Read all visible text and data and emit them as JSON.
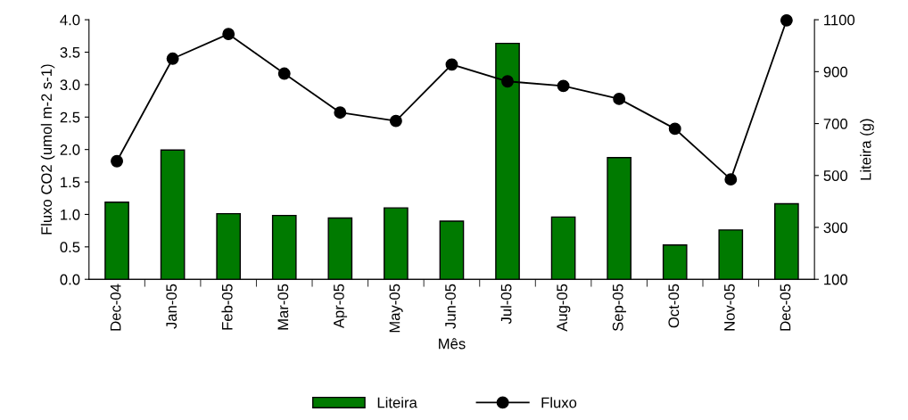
{
  "chart_data": {
    "type": "bar",
    "xlabel": "Mês",
    "ylabel": "Fluxo CO2 (umol m-2 s-1)",
    "y2label": "Liteira (g)",
    "categories": [
      "Dec-04",
      "Jan-05",
      "Feb-05",
      "Mar-05",
      "Apr-05",
      "May-05",
      "Jun-05",
      "Jul-05",
      "Aug-05",
      "Sep-05",
      "Oct-05",
      "Nov-05",
      "Dec-05"
    ],
    "series": [
      {
        "name": "Liteira",
        "axis": "y2",
        "color": "#007a00",
        "values": [
          397,
          598,
          353,
          346,
          336,
          375,
          324,
          1009,
          340,
          569,
          232,
          290,
          391
        ]
      },
      {
        "name": "Fluxo",
        "type": "line",
        "axis": "y",
        "color": "#000000",
        "marker": "circle",
        "line_style": "solid",
        "values": [
          1.82,
          3.4,
          3.78,
          3.17,
          2.57,
          2.44,
          3.31,
          3.05,
          2.98,
          2.78,
          2.32,
          1.54,
          3.99
        ]
      }
    ],
    "ylim": [
      0,
      4
    ],
    "yticks": [
      {
        "value": 0,
        "label": "0.0"
      },
      {
        "value": 0.5,
        "label": "0.5"
      },
      {
        "value": 1,
        "label": "1.0"
      },
      {
        "value": 1.5,
        "label": "1.5"
      },
      {
        "value": 2,
        "label": "2.0"
      },
      {
        "value": 2.5,
        "label": "2.5"
      },
      {
        "value": 3,
        "label": "3.0"
      },
      {
        "value": 3.5,
        "label": "3.5"
      },
      {
        "value": 4,
        "label": "4.0"
      }
    ],
    "y2lim": [
      100,
      1100
    ],
    "y2ticks": [
      100,
      300,
      500,
      700,
      900,
      1100
    ],
    "grid": false,
    "legend": "bottom"
  }
}
